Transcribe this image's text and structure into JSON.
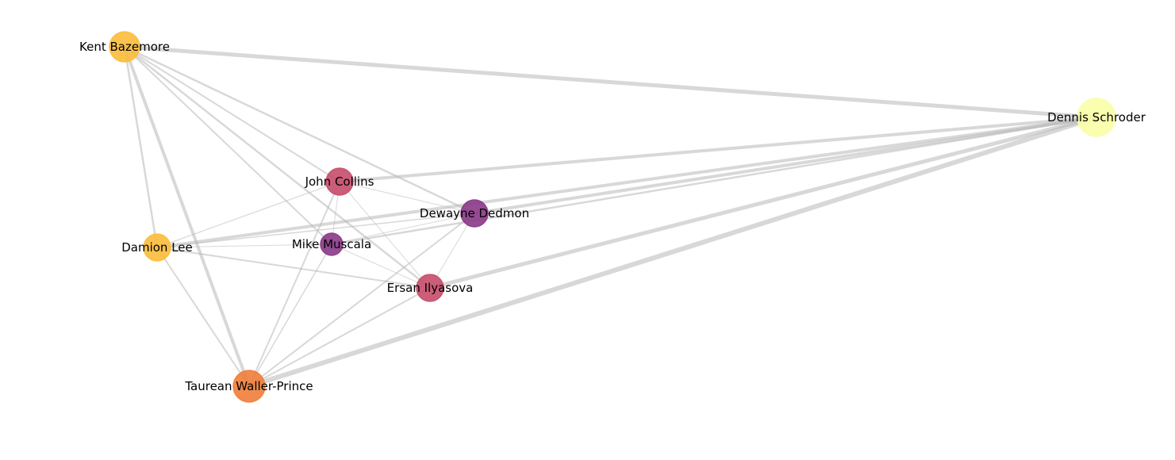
{
  "nodes": [
    {
      "id": "kent",
      "label": "Kent Bazemore",
      "color": "#fbbc3b"
    },
    {
      "id": "dennis",
      "label": "Dennis Schroder",
      "color": "#fafea6"
    },
    {
      "id": "john",
      "label": "John Collins",
      "color": "#c54d6a"
    },
    {
      "id": "dewayne",
      "label": "Dewayne Dedmon",
      "color": "#8a3987"
    },
    {
      "id": "damion",
      "label": "Damion Lee",
      "color": "#fbbc3b"
    },
    {
      "id": "mike",
      "label": "Mike Muscala",
      "color": "#8a3987"
    },
    {
      "id": "ersan",
      "label": "Ersan Ilyasova",
      "color": "#c54d6a"
    },
    {
      "id": "taurean",
      "label": "Taurean Waller-Prince",
      "color": "#f07d3a"
    }
  ],
  "edges": [
    {
      "source": "kent",
      "target": "dennis",
      "weight": 5
    },
    {
      "source": "kent",
      "target": "damion",
      "weight": 2.5
    },
    {
      "source": "kent",
      "target": "taurean",
      "weight": 4
    },
    {
      "source": "kent",
      "target": "john",
      "weight": 2
    },
    {
      "source": "kent",
      "target": "dewayne",
      "weight": 2.5
    },
    {
      "source": "kent",
      "target": "mike",
      "weight": 2
    },
    {
      "source": "kent",
      "target": "ersan",
      "weight": 2.5
    },
    {
      "source": "dennis",
      "target": "john",
      "weight": 4
    },
    {
      "source": "dennis",
      "target": "dewayne",
      "weight": 4
    },
    {
      "source": "dennis",
      "target": "damion",
      "weight": 4
    },
    {
      "source": "dennis",
      "target": "mike",
      "weight": 2.5
    },
    {
      "source": "dennis",
      "target": "ersan",
      "weight": 5
    },
    {
      "source": "dennis",
      "target": "taurean",
      "weight": 6
    },
    {
      "source": "john",
      "target": "damion",
      "weight": 1.2
    },
    {
      "source": "john",
      "target": "dewayne",
      "weight": 1
    },
    {
      "source": "john",
      "target": "mike",
      "weight": 1
    },
    {
      "source": "john",
      "target": "ersan",
      "weight": 1
    },
    {
      "source": "john",
      "target": "taurean",
      "weight": 2
    },
    {
      "source": "dewayne",
      "target": "damion",
      "weight": 1.5
    },
    {
      "source": "dewayne",
      "target": "mike",
      "weight": 1
    },
    {
      "source": "dewayne",
      "target": "ersan",
      "weight": 1
    },
    {
      "source": "dewayne",
      "target": "taurean",
      "weight": 2
    },
    {
      "source": "damion",
      "target": "mike",
      "weight": 1
    },
    {
      "source": "damion",
      "target": "ersan",
      "weight": 2
    },
    {
      "source": "damion",
      "target": "taurean",
      "weight": 2
    },
    {
      "source": "mike",
      "target": "ersan",
      "weight": 1
    },
    {
      "source": "mike",
      "target": "taurean",
      "weight": 1.5
    },
    {
      "source": "ersan",
      "target": "taurean",
      "weight": 2
    }
  ]
}
